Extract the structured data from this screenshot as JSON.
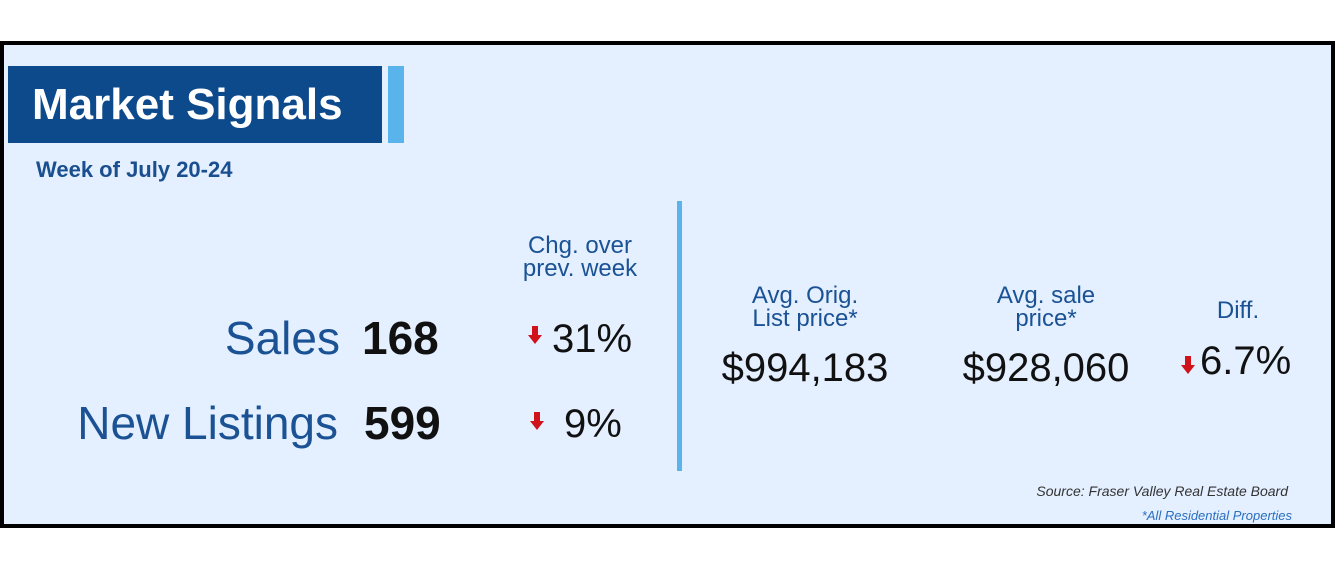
{
  "header": {
    "title": "Market Signals",
    "subtitle": "Week of July 20-24"
  },
  "weekly": {
    "change_header": [
      "Chg. over",
      "prev. week"
    ],
    "rows": [
      {
        "label": "Sales",
        "value": "168",
        "change": "31%"
      },
      {
        "label": "New Listings",
        "value": "599",
        "change": "9%"
      }
    ]
  },
  "prices": {
    "columns": [
      {
        "header": [
          "Avg. Orig.",
          "List price*"
        ],
        "value": "$994,183"
      },
      {
        "header": [
          "Avg. sale",
          "price*"
        ],
        "value": "$928,060"
      }
    ],
    "diff": {
      "header": "Diff.",
      "value": "6.7%"
    }
  },
  "footer": {
    "source": "Source: Fraser Valley Real Estate Board",
    "note": "*All Residential Properties"
  }
}
